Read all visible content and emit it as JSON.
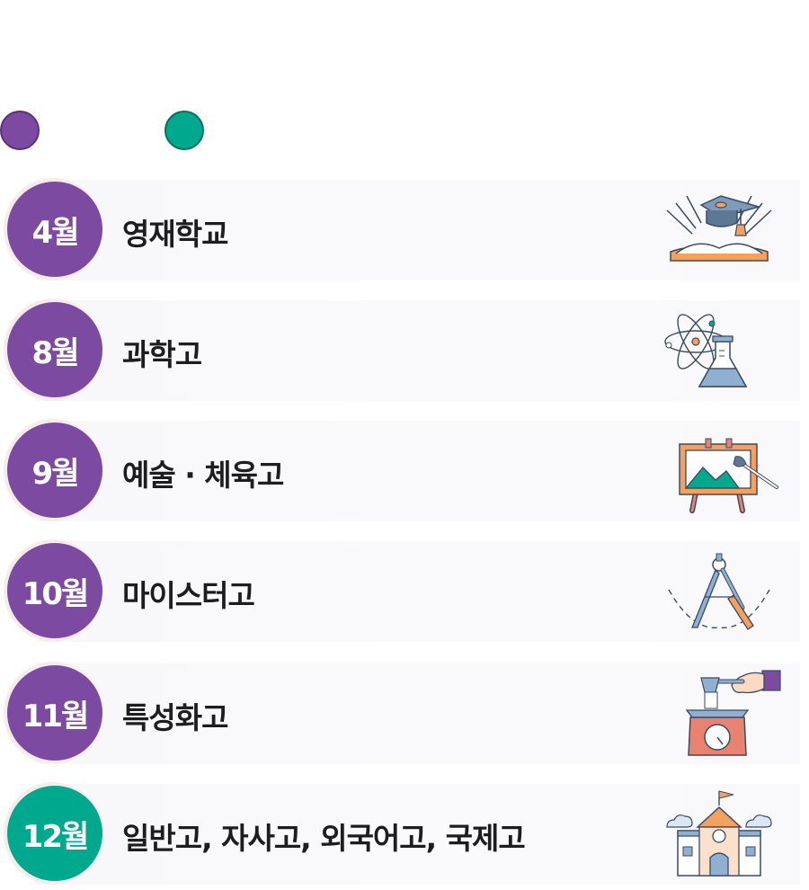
{
  "legend": {
    "colors": [
      "#7d4aa1",
      "#00a88e"
    ]
  },
  "rows": [
    {
      "month": "4월",
      "label": "영재학교",
      "color": "#7d4aa1",
      "icon": "graduation-book-icon"
    },
    {
      "month": "8월",
      "label": "과학고",
      "color": "#7d4aa1",
      "icon": "atom-flask-icon"
    },
    {
      "month": "9월",
      "label": "예술 · 체육고",
      "color": "#7d4aa1",
      "icon": "easel-brush-icon"
    },
    {
      "month": "10월",
      "label": "마이스터고",
      "color": "#7d4aa1",
      "icon": "compass-tool-icon"
    },
    {
      "month": "11월",
      "label": "특성화고",
      "color": "#7d4aa1",
      "icon": "scale-measure-icon"
    },
    {
      "month": "12월",
      "label": "일반고, 자사고, 외국어고, 국제고",
      "color": "#00a88e",
      "icon": "school-building-icon"
    }
  ]
}
